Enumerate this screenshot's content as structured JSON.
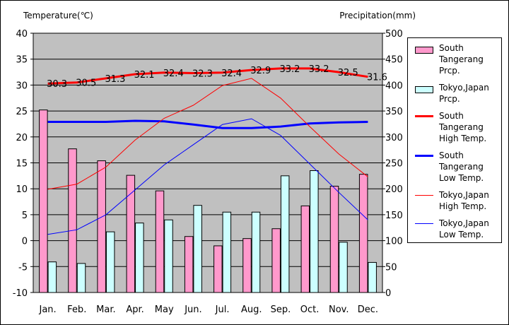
{
  "chart_data": {
    "type": "bar",
    "left_axis_title": "Temperature(℃)",
    "right_axis_title": "Precipitation(mm)",
    "categories": [
      "Jan.",
      "Feb.",
      "Mar.",
      "Apr.",
      "May",
      "Jun.",
      "Jul.",
      "Aug.",
      "Sep.",
      "Oct.",
      "Nov.",
      "Dec."
    ],
    "y_left": {
      "min": -10,
      "max": 40,
      "step": 5,
      "ticks": [
        "40",
        "35",
        "30",
        "25",
        "20",
        "15",
        "10",
        "5",
        "0",
        "-5",
        "-10"
      ]
    },
    "y_right": {
      "min": 0,
      "max": 500,
      "step": 50,
      "ticks": [
        "500",
        "450",
        "400",
        "350",
        "300",
        "250",
        "200",
        "150",
        "100",
        "50",
        "0"
      ]
    },
    "plot_background": "#c0c0c0",
    "grid": true,
    "legend_position": "right",
    "bar_series": [
      {
        "name": "South Tangerang Prcp.",
        "color": "#ff99cc",
        "values": [
          352,
          277,
          254,
          226,
          196,
          108,
          90,
          104,
          123,
          167,
          205,
          228
        ]
      },
      {
        "name": "Tokyo,Japan Prcp.",
        "color": "#ccffff",
        "values": [
          59,
          56,
          117,
          134,
          140,
          168,
          155,
          155,
          225,
          235,
          97,
          58
        ]
      }
    ],
    "line_series": [
      {
        "name": "South Tangerang High Temp.",
        "color": "#ff0000",
        "width": 3,
        "values": [
          30.3,
          30.5,
          31.3,
          32.1,
          32.4,
          32.3,
          32.4,
          32.9,
          33.2,
          33.2,
          32.5,
          31.6
        ],
        "labels": [
          "30.3",
          "30.5",
          "31.3",
          "32.1",
          "32.4",
          "32.3",
          "32.4",
          "32.9",
          "33.2",
          "33.2",
          "32.5",
          "31.6"
        ]
      },
      {
        "name": "South Tangerang Low Temp.",
        "color": "#0000ff",
        "width": 3,
        "values": [
          22.9,
          22.9,
          22.9,
          23.1,
          23.0,
          22.4,
          21.7,
          21.7,
          22.0,
          22.6,
          22.8,
          22.9
        ],
        "labels": []
      },
      {
        "name": "Tokyo,Japan High Temp.",
        "color": "#ff0000",
        "width": 1,
        "values": [
          9.9,
          10.9,
          14.2,
          19.4,
          23.6,
          26.1,
          29.9,
          31.3,
          27.5,
          22.0,
          16.7,
          12.3
        ],
        "labels": []
      },
      {
        "name": "Tokyo,Japan Low Temp.",
        "color": "#0000ff",
        "width": 1,
        "values": [
          1.2,
          2.1,
          5.0,
          9.8,
          14.6,
          18.5,
          22.4,
          23.5,
          20.3,
          14.8,
          9.3,
          4.0
        ],
        "labels": []
      }
    ]
  },
  "legend": {
    "items": [
      {
        "kind": "bar",
        "color": "#ff99cc",
        "lines": [
          "South",
          "Tangerang",
          "Prcp."
        ]
      },
      {
        "kind": "bar",
        "color": "#ccffff",
        "lines": [
          "Tokyo,Japan",
          "Prcp."
        ]
      },
      {
        "kind": "line",
        "color": "#ff0000",
        "width": 3,
        "lines": [
          "South",
          "Tangerang",
          "High Temp."
        ]
      },
      {
        "kind": "line",
        "color": "#0000ff",
        "width": 3,
        "lines": [
          "South",
          "Tangerang",
          "Low Temp."
        ]
      },
      {
        "kind": "line",
        "color": "#ff0000",
        "width": 1,
        "lines": [
          "Tokyo,Japan",
          "High Temp."
        ]
      },
      {
        "kind": "line",
        "color": "#0000ff",
        "width": 1,
        "lines": [
          "Tokyo,Japan",
          "Low Temp."
        ]
      }
    ]
  }
}
